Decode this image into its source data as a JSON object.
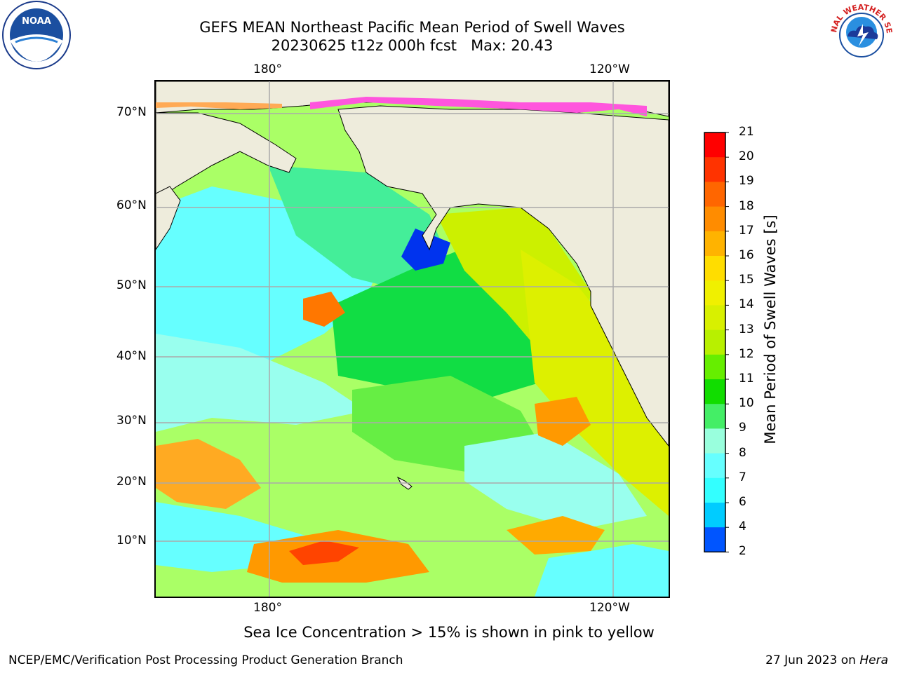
{
  "title": {
    "line1": "GEFS MEAN Northeast Pacific Mean Period of Swell Waves",
    "line2": "20230625 t12z 000h fcst   Max: 20.43"
  },
  "axes": {
    "lon_top": [
      "180°",
      "120°W"
    ],
    "lon_bottom": [
      "180°",
      "120°W"
    ],
    "lat": [
      "70°N",
      "60°N",
      "50°N",
      "40°N",
      "30°N",
      "20°N",
      "10°N"
    ]
  },
  "colorbar": {
    "label": "Mean Period of Swell Waves [s]",
    "ticks": [
      "21",
      "20",
      "19",
      "18",
      "17",
      "16",
      "15",
      "14",
      "13",
      "12",
      "11",
      "10",
      "9",
      "8",
      "7",
      "6",
      "4",
      "2"
    ],
    "colors": [
      "#ff0000",
      "#ff3300",
      "#ff6600",
      "#ff8c00",
      "#ffb300",
      "#ffdd00",
      "#f0f000",
      "#d8f000",
      "#b8f000",
      "#66ee00",
      "#11dd00",
      "#44ee66",
      "#99ffdd",
      "#66ffff",
      "#33ffff",
      "#00ccff",
      "#0055ff"
    ],
    "under_color": "#0000ee"
  },
  "map_colors": {
    "land": "#eeecdc",
    "grid": "#aaaaaa",
    "coast": "#000000"
  },
  "note": "Sea Ice Concentration > 15% is shown in pink to yellow",
  "footer": {
    "left": "NCEP/EMC/Verification Post Processing Product Generation Branch",
    "right_date": "27 Jun 2023 on ",
    "right_machine": "Hera"
  },
  "logos": {
    "noaa_text": "NOAA",
    "nws_text": "NATIONAL WEATHER SERVICE"
  }
}
